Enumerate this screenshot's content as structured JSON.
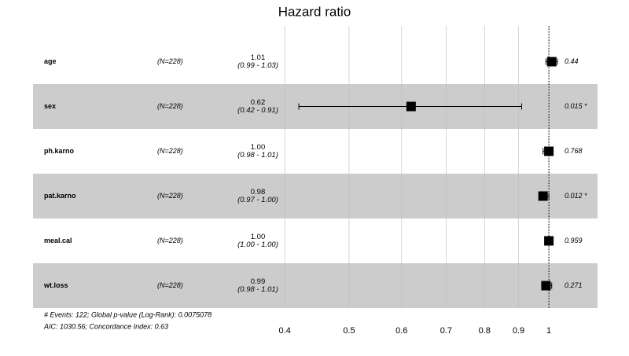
{
  "chart_data": {
    "type": "forest",
    "title": "Hazard ratio",
    "log_x": true,
    "xlim": [
      0.167,
      1.184
    ],
    "xticks": [
      0.4,
      0.5,
      0.6,
      0.7,
      0.8,
      0.9,
      1
    ],
    "reference": 1,
    "grid": true,
    "row_colors": [
      "#ffffff",
      "#cccccc"
    ],
    "point_color": "#000000",
    "rows": [
      {
        "name": "age",
        "n": "(N=228)",
        "estimate": 1.01,
        "estimate_label": "1.01",
        "lower": 0.99,
        "upper": 1.03,
        "ci_label": "(0.99 - 1.03)",
        "p_label": "0.44"
      },
      {
        "name": "sex",
        "n": "(N=228)",
        "estimate": 0.62,
        "estimate_label": "0.62",
        "lower": 0.42,
        "upper": 0.91,
        "ci_label": "(0.42 - 0.91)",
        "p_label": "0.015 *"
      },
      {
        "name": "ph.karno",
        "n": "(N=228)",
        "estimate": 1.0,
        "estimate_label": "1.00",
        "lower": 0.98,
        "upper": 1.01,
        "ci_label": "(0.98 - 1.01)",
        "p_label": "0.768"
      },
      {
        "name": "pat.karno",
        "n": "(N=228)",
        "estimate": 0.98,
        "estimate_label": "0.98",
        "lower": 0.97,
        "upper": 1.0,
        "ci_label": "(0.97 - 1.00)",
        "p_label": "0.012 *"
      },
      {
        "name": "meal.cal",
        "n": "(N=228)",
        "estimate": 1.0,
        "estimate_label": "1.00",
        "lower": 1.0,
        "upper": 1.0,
        "ci_label": "(1.00 - 1.00)",
        "p_label": "0.959"
      },
      {
        "name": "wt.loss",
        "n": "(N=228)",
        "estimate": 0.99,
        "estimate_label": "0.99",
        "lower": 0.98,
        "upper": 1.01,
        "ci_label": "(0.98 - 1.01)",
        "p_label": "0.271"
      }
    ],
    "footnotes": [
      "# Events: 122; Global p-value (Log-Rank): 0.0075078",
      "AIC: 1030.56; Concordance Index: 0.63"
    ]
  }
}
